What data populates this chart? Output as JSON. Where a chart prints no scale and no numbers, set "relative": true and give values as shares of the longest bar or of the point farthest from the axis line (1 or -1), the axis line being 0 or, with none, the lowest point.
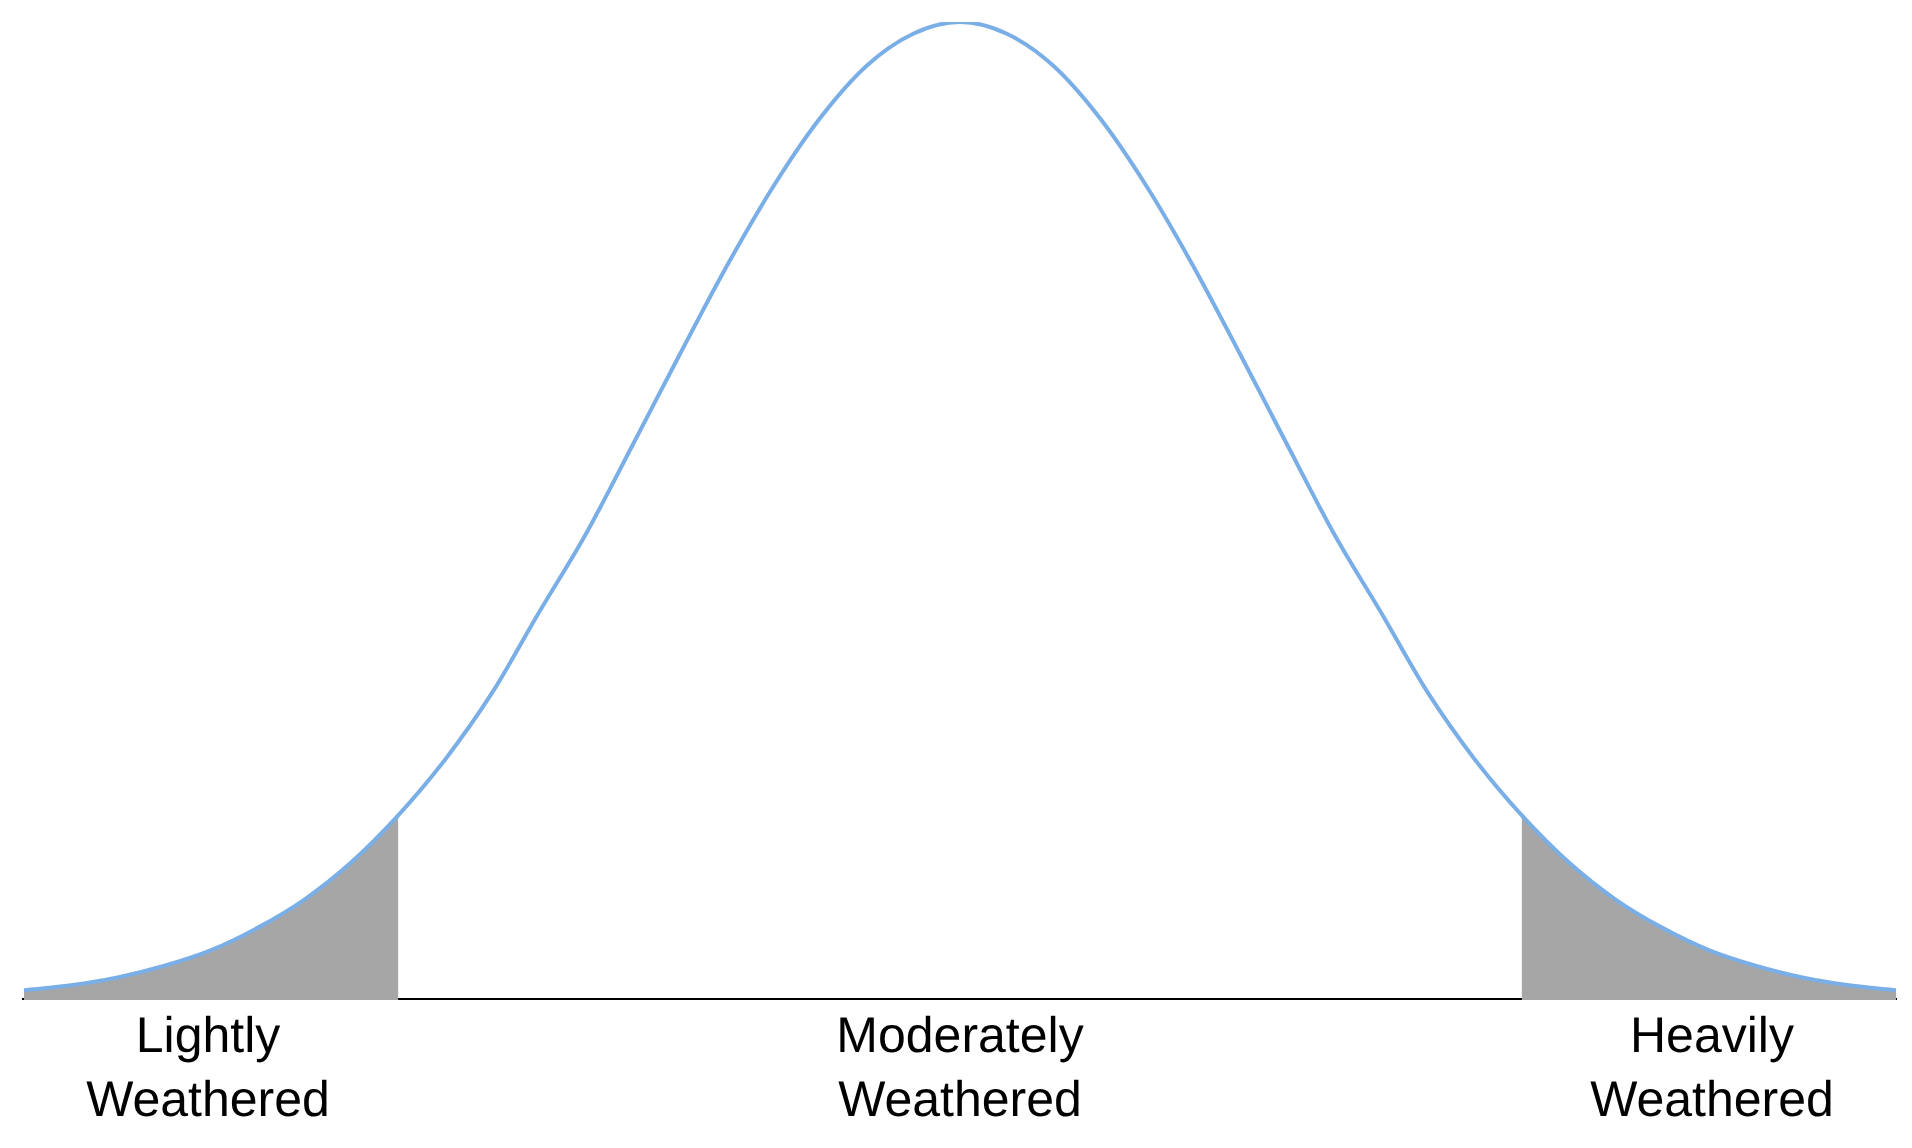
{
  "chart_data": {
    "type": "line",
    "relative": true,
    "categories": [
      null,
      null,
      null,
      null,
      null,
      null,
      null,
      null,
      null,
      null,
      null,
      null,
      null,
      null,
      null,
      null,
      null,
      null,
      null,
      null,
      null,
      null,
      null,
      null,
      null,
      null,
      null,
      null,
      null,
      null,
      null,
      null,
      null,
      null,
      null,
      null,
      null,
      null,
      null,
      null,
      null
    ],
    "series": [
      {
        "type": "area",
        "color": "#a6a6a6",
        "values": [
          0.01,
          0.015,
          0.023,
          0.035,
          0.051,
          0.074,
          0.103,
          0.141,
          0.189,
          null,
          null,
          null,
          null,
          null,
          null,
          null,
          null,
          null,
          null,
          null,
          null,
          null,
          null,
          null,
          null,
          null,
          null,
          null,
          null,
          null,
          null,
          null,
          null,
          null,
          null,
          null,
          null,
          null,
          null,
          null,
          null
        ]
      },
      {
        "type": "area",
        "color": "#a6a6a6",
        "values": [
          null,
          null,
          null,
          null,
          null,
          null,
          null,
          null,
          null,
          null,
          null,
          null,
          null,
          null,
          null,
          null,
          null,
          null,
          null,
          null,
          null,
          null,
          null,
          null,
          null,
          null,
          null,
          null,
          null,
          null,
          null,
          null,
          0.189,
          0.141,
          0.103,
          0.074,
          0.051,
          0.035,
          0.023,
          0.015,
          0.01
        ]
      },
      {
        "color": "#7aaee6",
        "values": [
          0.01,
          0.015,
          0.023,
          0.035,
          0.051,
          0.074,
          0.103,
          0.141,
          0.189,
          0.246,
          0.314,
          0.396,
          0.476,
          0.567,
          0.659,
          0.749,
          0.831,
          0.901,
          0.955,
          0.988,
          1,
          0.988,
          0.955,
          0.901,
          0.831,
          0.749,
          0.659,
          0.567,
          0.476,
          0.396,
          0.314,
          0.246,
          0.189,
          0.141,
          0.103,
          0.074,
          0.051,
          0.035,
          0.023,
          0.015,
          0.01
        ]
      }
    ],
    "annotations": [
      "Lightly Weathered",
      "Moderately Weathered",
      "Heavily Weathered"
    ]
  }
}
